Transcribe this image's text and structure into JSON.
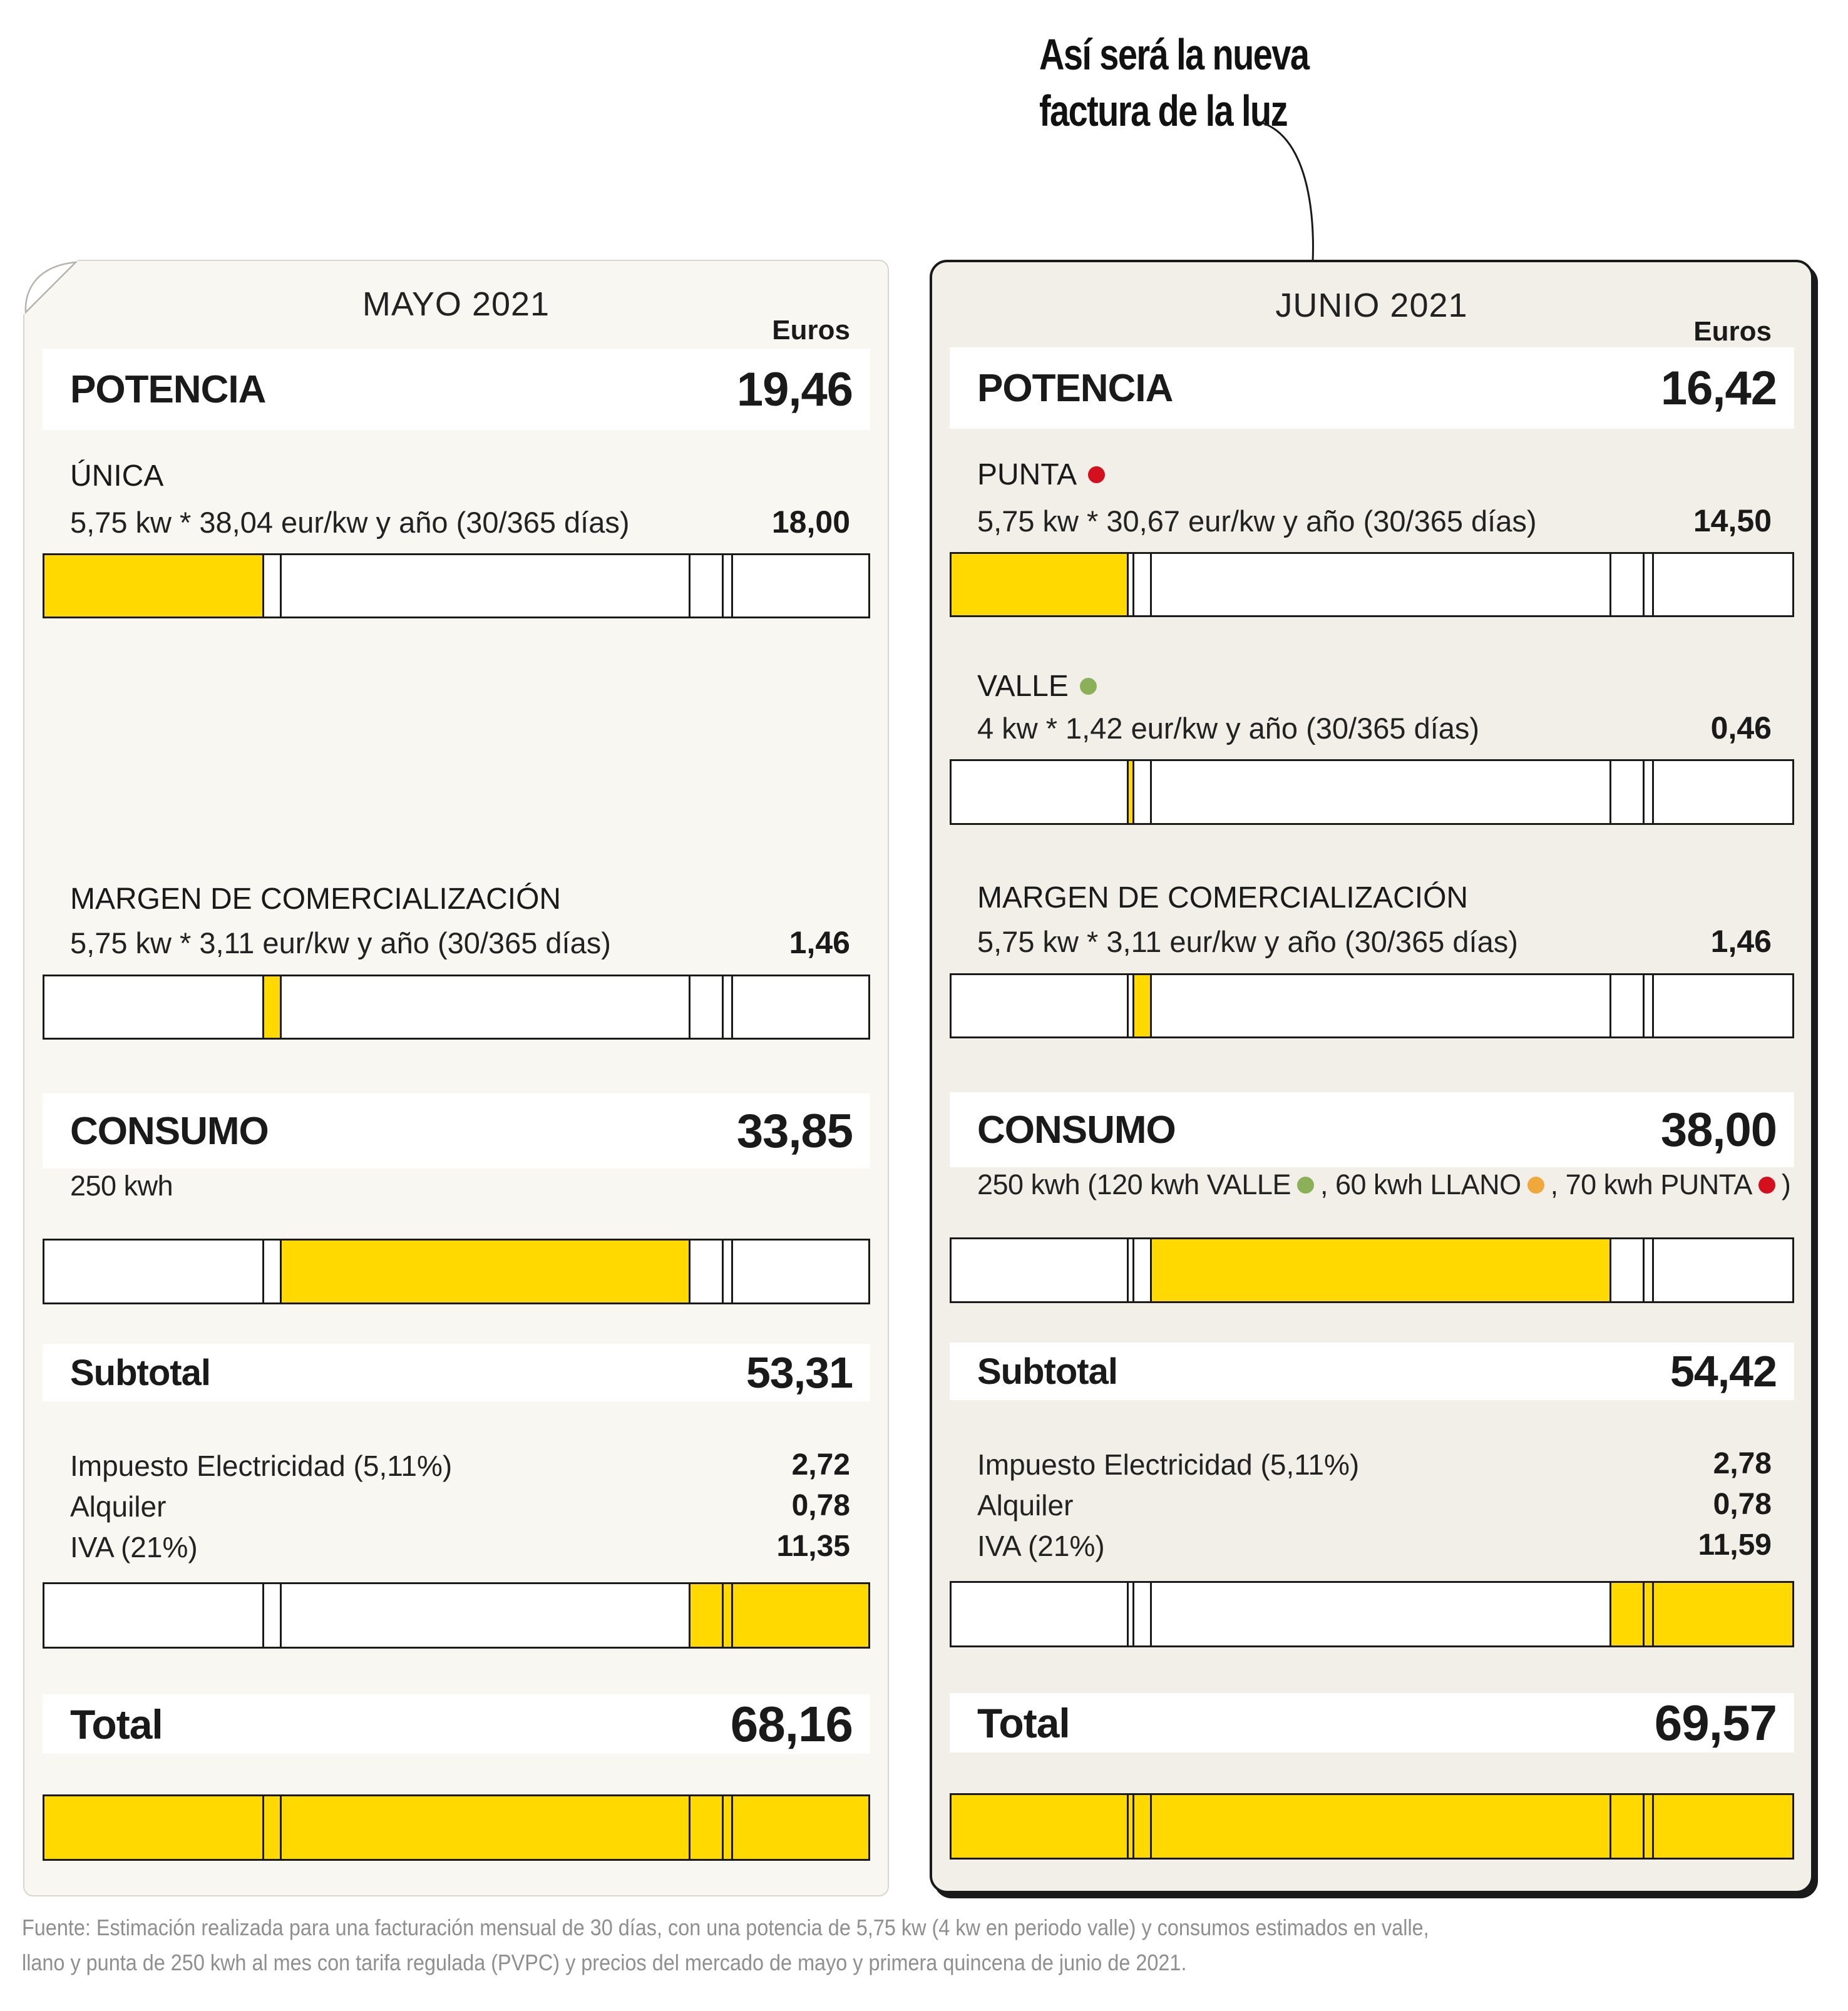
{
  "title": {
    "line1": "Así será la nueva",
    "line2": "factura de la luz"
  },
  "colors": {
    "yellow": "#FFD900",
    "red": "#D5101E",
    "green": "#8CB05A",
    "orange": "#F0A73C",
    "panel_may_bg": "#F8F7F2",
    "panel_jun_bg": "#F1EFE8",
    "ink": "#1a1a1a"
  },
  "panels": [
    {
      "month": "MAYO 2021",
      "currency_label": "Euros",
      "potencia": {
        "label": "POTENCIA",
        "value": "19,46"
      },
      "unica": {
        "label": "ÚNICA",
        "formula": "5,75 kw * 38,04 eur/kw y año (30/365 días)",
        "value": "18,00"
      },
      "margen": {
        "label": "MARGEN DE COMERCIALIZACIÓN",
        "formula": "5,75 kw * 3,11 eur/kw y año (30/365 días)",
        "value": "1,46"
      },
      "consumo": {
        "label": "CONSUMO",
        "value": "33,85"
      },
      "consumo_detail": [
        {
          "text": "250 kwh"
        }
      ],
      "subtotal": {
        "label": "Subtotal",
        "value": "53,31"
      },
      "taxes": [
        {
          "label": "Impuesto Electricidad (5,11%)",
          "value": "2,72"
        },
        {
          "label": "Alquiler",
          "value": "0,78"
        },
        {
          "label": "IVA (21%)",
          "value": "11,35"
        }
      ],
      "total": {
        "label": "Total",
        "value": "68,16"
      }
    },
    {
      "month": "JUNIO 2021",
      "currency_label": "Euros",
      "potencia": {
        "label": "POTENCIA",
        "value": "16,42"
      },
      "punta": {
        "label": "PUNTA",
        "dot": "red",
        "formula": "5,75 kw * 30,67 eur/kw y año (30/365 días)",
        "value": "14,50"
      },
      "valle": {
        "label": "VALLE",
        "dot": "green",
        "formula": "4 kw * 1,42 eur/kw y año (30/365 días)",
        "value": "0,46"
      },
      "margen": {
        "label": "MARGEN DE COMERCIALIZACIÓN",
        "formula": "5,75 kw * 3,11 eur/kw y año (30/365 días)",
        "value": "1,46"
      },
      "consumo": {
        "label": "CONSUMO",
        "value": "38,00"
      },
      "consumo_detail": [
        {
          "text": "250 kwh (120 kwh VALLE"
        },
        {
          "dot": "green"
        },
        {
          "text": ", 60 kwh LLANO"
        },
        {
          "dot": "orange"
        },
        {
          "text": ", 70 kwh PUNTA"
        },
        {
          "dot": "red"
        },
        {
          "text": ")"
        }
      ],
      "subtotal": {
        "label": "Subtotal",
        "value": "54,42"
      },
      "taxes": [
        {
          "label": "Impuesto Electricidad (5,11%)",
          "value": "2,78"
        },
        {
          "label": "Alquiler",
          "value": "0,78"
        },
        {
          "label": "IVA (21%)",
          "value": "11,59"
        }
      ],
      "total": {
        "label": "Total",
        "value": "69,57"
      }
    }
  ],
  "chart_data": [
    {
      "type": "bar",
      "title": "MAYO 2021",
      "unit": "Euros",
      "total": 68.16,
      "segments": [
        {
          "name": "POTENCIA ÚNICA",
          "value": 18.0
        },
        {
          "name": "MARGEN DE COMERCIALIZACIÓN",
          "value": 1.46
        },
        {
          "name": "CONSUMO",
          "value": 33.85
        },
        {
          "name": "Impuesto Electricidad (5,11%)",
          "value": 2.72
        },
        {
          "name": "Alquiler",
          "value": 0.78
        },
        {
          "name": "IVA (21%)",
          "value": 11.35
        }
      ],
      "bars": [
        {
          "row": "ÚNICA",
          "highlight": [
            0
          ]
        },
        {
          "row": "MARGEN DE COMERCIALIZACIÓN",
          "highlight": [
            1
          ]
        },
        {
          "row": "CONSUMO",
          "highlight": [
            2
          ]
        },
        {
          "row": "Impuestos y alquiler",
          "highlight": [
            3,
            4,
            5
          ]
        },
        {
          "row": "Total",
          "highlight": [
            0,
            1,
            2,
            3,
            4,
            5
          ]
        }
      ]
    },
    {
      "type": "bar",
      "title": "JUNIO 2021",
      "unit": "Euros",
      "total": 69.57,
      "segments": [
        {
          "name": "POTENCIA PUNTA",
          "value": 14.5
        },
        {
          "name": "POTENCIA VALLE",
          "value": 0.46
        },
        {
          "name": "MARGEN DE COMERCIALIZACIÓN",
          "value": 1.46
        },
        {
          "name": "CONSUMO",
          "value": 38.0
        },
        {
          "name": "Impuesto Electricidad (5,11%)",
          "value": 2.78
        },
        {
          "name": "Alquiler",
          "value": 0.78
        },
        {
          "name": "IVA (21%)",
          "value": 11.59
        }
      ],
      "bars": [
        {
          "row": "PUNTA",
          "highlight": [
            0
          ]
        },
        {
          "row": "VALLE",
          "highlight": [
            1
          ]
        },
        {
          "row": "MARGEN DE COMERCIALIZACIÓN",
          "highlight": [
            2
          ]
        },
        {
          "row": "CONSUMO",
          "highlight": [
            3
          ]
        },
        {
          "row": "Impuestos y alquiler",
          "highlight": [
            4,
            5,
            6
          ]
        },
        {
          "row": "Total",
          "highlight": [
            0,
            1,
            2,
            3,
            4,
            5,
            6
          ]
        }
      ]
    }
  ],
  "consumo_kwh": {
    "mayo": 250,
    "junio_valle": 120,
    "junio_llano": 60,
    "junio_punta": 70
  },
  "footnote": {
    "line1": "Fuente: Estimación realizada para una facturación mensual de 30 días, con una potencia de 5,75 kw (4 kw en periodo valle) y consumos estimados en valle,",
    "line2": "llano y punta de 250 kwh al mes con tarifa regulada (PVPC) y precios del mercado de mayo y primera quincena de junio de 2021."
  }
}
